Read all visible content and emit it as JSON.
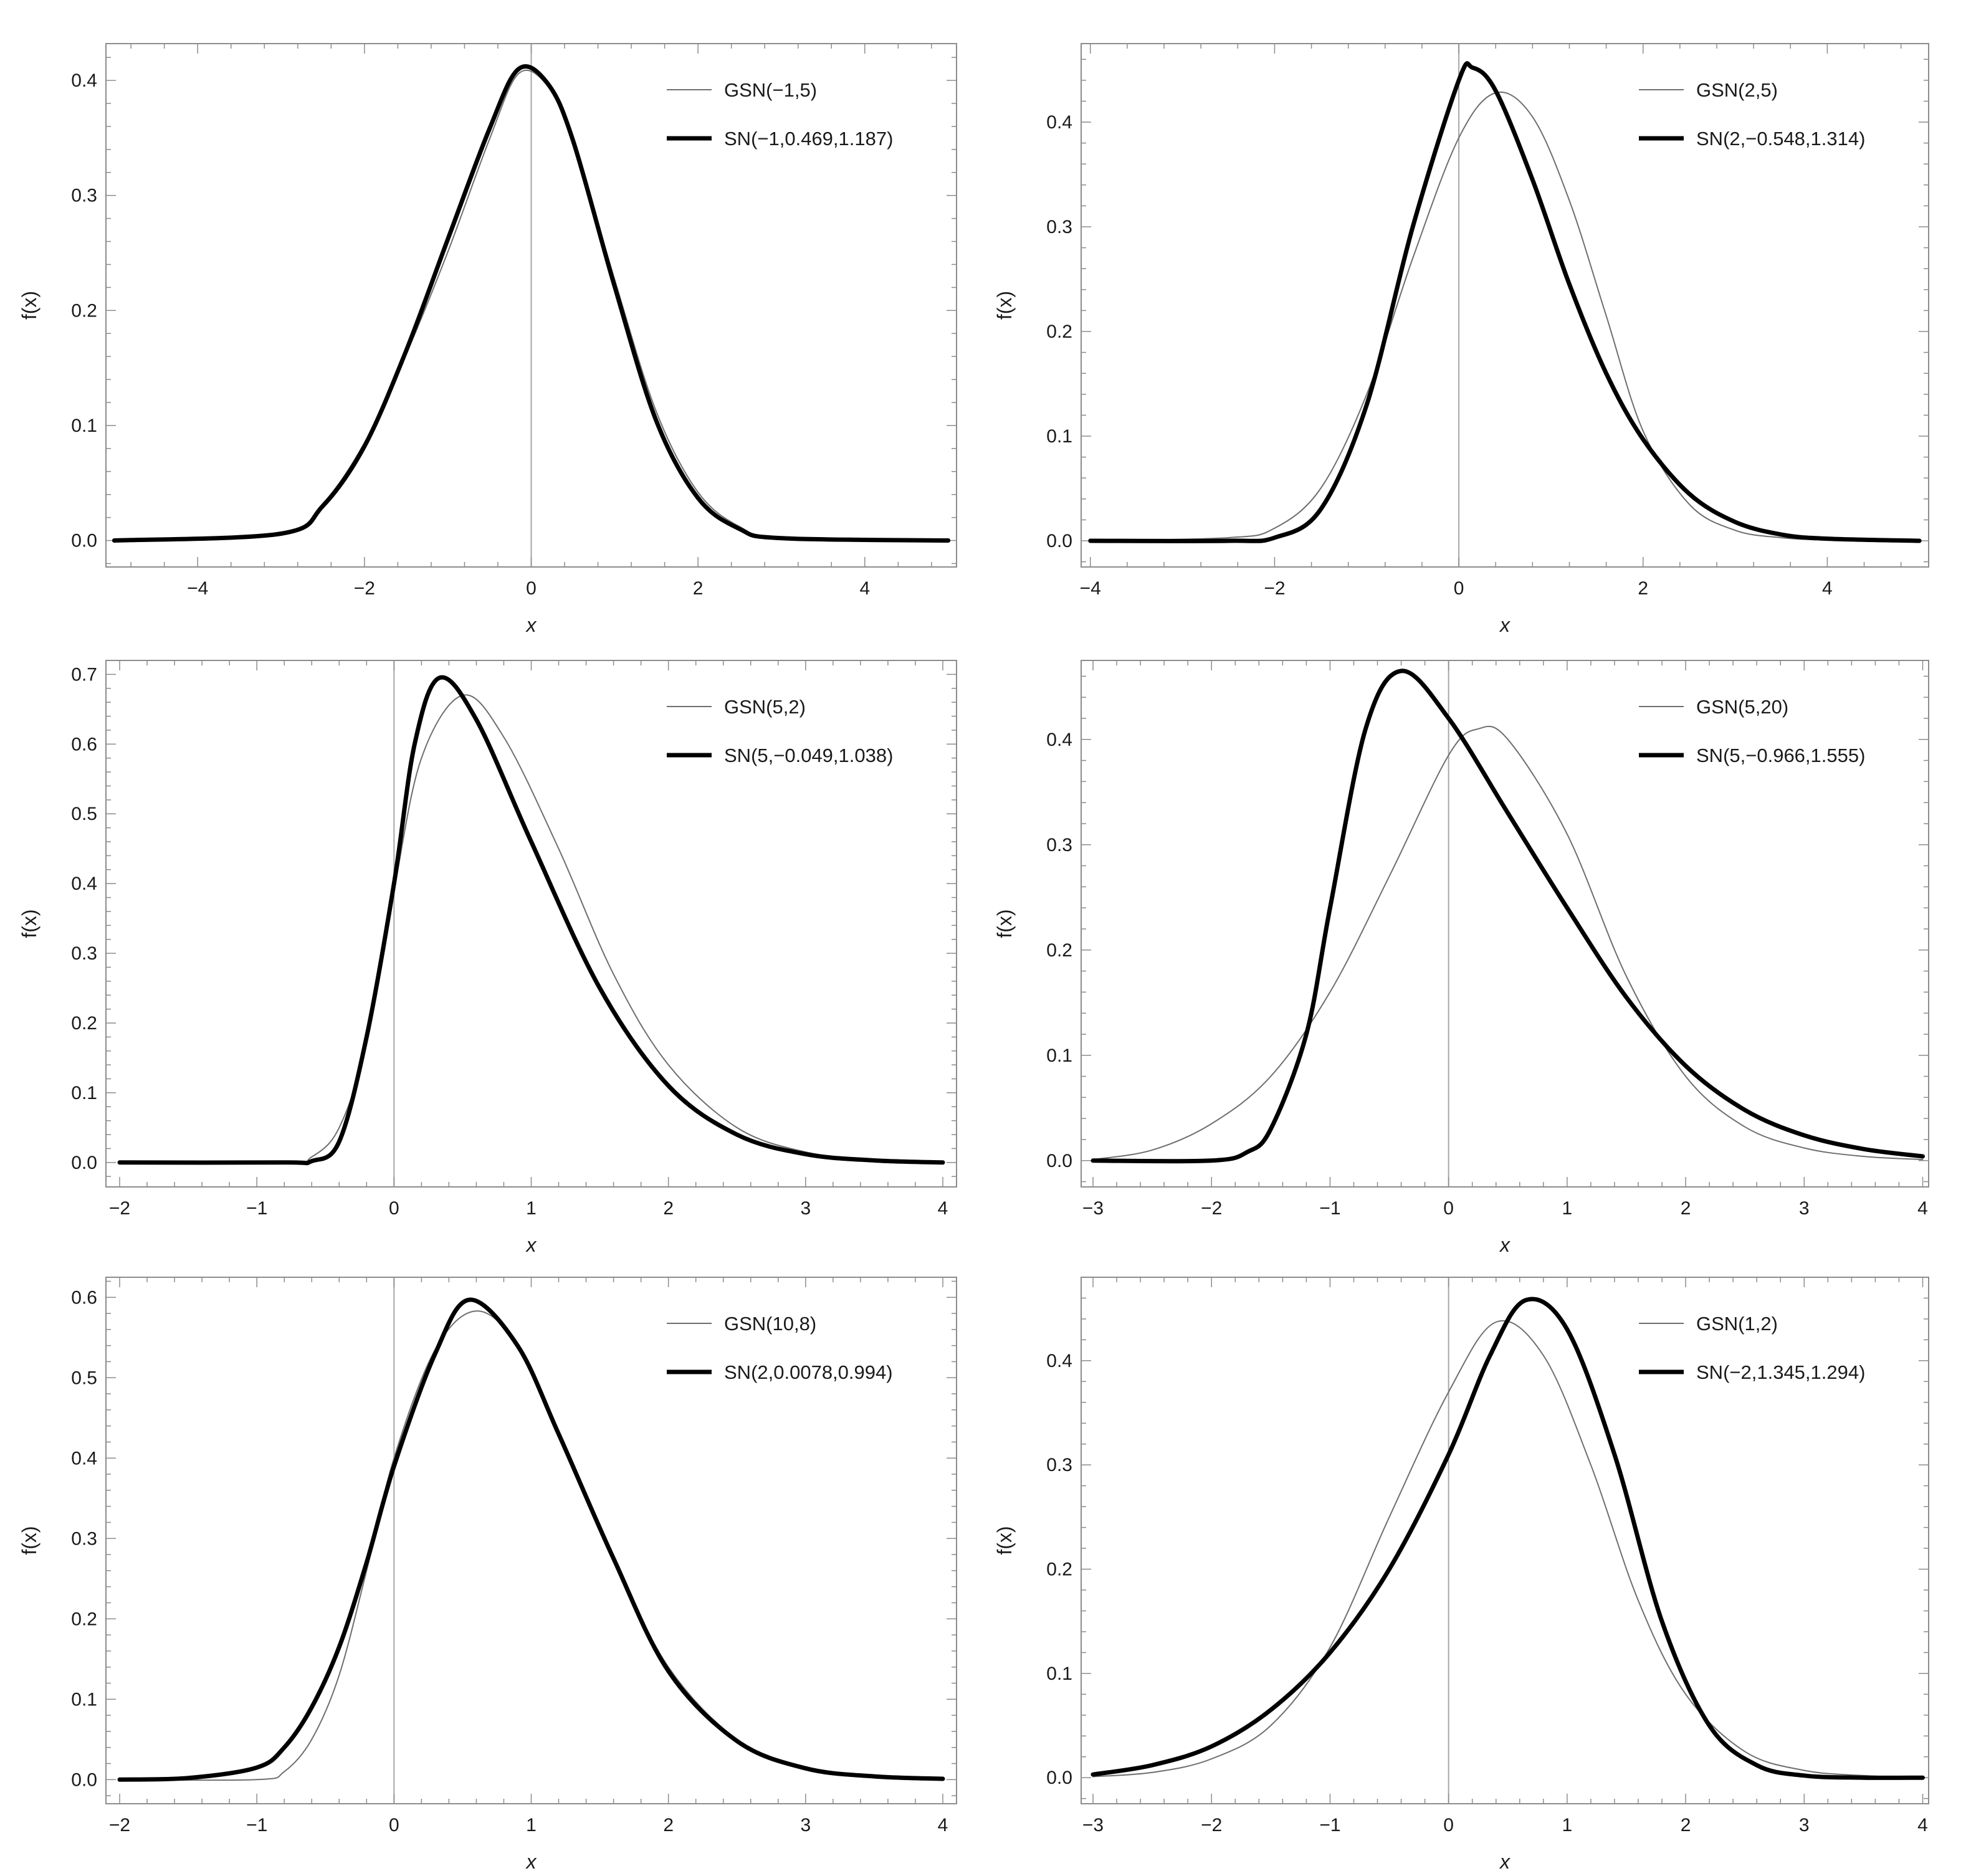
{
  "colors": {
    "frame": "#8c8c8c",
    "zero_line": "#a6a6a6",
    "thin_series": "#6e6e6e",
    "thick_series": "#000000"
  },
  "chart_data": [
    {
      "type": "line",
      "xlabel": "x",
      "ylabel": "f(x)",
      "xlim": [
        -5.1,
        5.1
      ],
      "ylim": [
        -0.023,
        0.432
      ],
      "xticks": [
        -4,
        -2,
        0,
        2,
        4
      ],
      "yticks": [
        0.0,
        0.1,
        0.2,
        0.3,
        0.4
      ],
      "xtick_labels": [
        "−4",
        "−2",
        "0",
        "2",
        "4"
      ],
      "ytick_labels": [
        "0.0",
        "0.1",
        "0.2",
        "0.3",
        "0.4"
      ],
      "legend_position": "top-right",
      "series": [
        {
          "name": "GSN(−1,5)",
          "style": "thin",
          "x": [
            -5,
            -3,
            -2.5,
            -2,
            -1.5,
            -1,
            -0.5,
            -0.15,
            0.2,
            0.5,
            1,
            1.5,
            2,
            2.5,
            3,
            5
          ],
          "y": [
            0,
            0.006,
            0.032,
            0.085,
            0.162,
            0.251,
            0.349,
            0.406,
            0.395,
            0.349,
            0.227,
            0.112,
            0.042,
            0.012,
            0.003,
            0
          ]
        },
        {
          "name": "SN(−1,0.469,1.187)",
          "style": "thick",
          "x": [
            -5,
            -3,
            -2.5,
            -2,
            -1.5,
            -1,
            -0.5,
            -0.15,
            0.2,
            0.5,
            1,
            1.5,
            2,
            2.5,
            3,
            5
          ],
          "y": [
            0,
            0.006,
            0.03,
            0.082,
            0.165,
            0.262,
            0.358,
            0.41,
            0.397,
            0.348,
            0.221,
            0.104,
            0.037,
            0.01,
            0.002,
            0
          ]
        }
      ]
    },
    {
      "type": "line",
      "xlabel": "x",
      "ylabel": "f(x)",
      "xlim": [
        -4.1,
        5.1
      ],
      "ylim": [
        -0.025,
        0.475
      ],
      "xticks": [
        -4,
        -2,
        0,
        2,
        4
      ],
      "yticks": [
        0.0,
        0.1,
        0.2,
        0.3,
        0.4
      ],
      "xtick_labels": [
        "−4",
        "−2",
        "0",
        "2",
        "4"
      ],
      "ytick_labels": [
        "0.0",
        "0.1",
        "0.2",
        "0.3",
        "0.4"
      ],
      "legend_position": "top-right",
      "series": [
        {
          "name": "GSN(2,5)",
          "style": "thin",
          "x": [
            -4,
            -2.5,
            -2,
            -1.5,
            -1,
            -0.5,
            0,
            0.4,
            0.8,
            1.2,
            1.6,
            2,
            2.5,
            3,
            3.5,
            4,
            5
          ],
          "y": [
            0,
            0.003,
            0.012,
            0.05,
            0.14,
            0.27,
            0.385,
            0.428,
            0.405,
            0.325,
            0.215,
            0.105,
            0.035,
            0.01,
            0.003,
            0.001,
            0
          ]
        },
        {
          "name": "SN(2,−0.548,1.314)",
          "style": "thick",
          "x": [
            -4,
            -2.5,
            -2,
            -1.5,
            -1,
            -0.5,
            0,
            0.15,
            0.4,
            0.8,
            1.2,
            1.6,
            2,
            2.5,
            3,
            3.5,
            4,
            5
          ],
          "y": [
            0,
            0,
            0.003,
            0.03,
            0.13,
            0.3,
            0.44,
            0.452,
            0.43,
            0.345,
            0.245,
            0.16,
            0.097,
            0.045,
            0.018,
            0.006,
            0.002,
            0
          ]
        }
      ]
    },
    {
      "type": "line",
      "xlabel": "x",
      "ylabel": "f(x)",
      "xlim": [
        -2.1,
        4.1
      ],
      "ylim": [
        -0.035,
        0.72
      ],
      "xticks": [
        -2,
        -1,
        0,
        1,
        2,
        3,
        4
      ],
      "yticks": [
        0.0,
        0.1,
        0.2,
        0.3,
        0.4,
        0.5,
        0.6,
        0.7
      ],
      "xtick_labels": [
        "−2",
        "−1",
        "0",
        "1",
        "2",
        "3",
        "4"
      ],
      "ytick_labels": [
        "0.0",
        "0.1",
        "0.2",
        "0.3",
        "0.4",
        "0.5",
        "0.6",
        "0.7"
      ],
      "legend_position": "top-right",
      "series": [
        {
          "name": "GSN(5,2)",
          "style": "thin",
          "x": [
            -2,
            -0.8,
            -0.6,
            -0.4,
            -0.2,
            0,
            0.2,
            0.5,
            0.8,
            1.2,
            1.6,
            2,
            2.5,
            3,
            3.5,
            4
          ],
          "y": [
            0,
            0,
            0.008,
            0.05,
            0.17,
            0.39,
            0.58,
            0.67,
            0.61,
            0.45,
            0.27,
            0.14,
            0.05,
            0.015,
            0.004,
            0
          ]
        },
        {
          "name": "SN(5,−0.049,1.038)",
          "style": "thick",
          "x": [
            -2,
            -0.8,
            -0.6,
            -0.4,
            -0.2,
            0,
            0.15,
            0.33,
            0.6,
            1,
            1.5,
            2,
            2.5,
            3,
            3.5,
            4
          ],
          "y": [
            0,
            0,
            0.002,
            0.03,
            0.18,
            0.4,
            0.6,
            0.695,
            0.635,
            0.46,
            0.25,
            0.11,
            0.04,
            0.012,
            0.003,
            0
          ]
        }
      ]
    },
    {
      "type": "line",
      "xlabel": "x",
      "ylabel": "f(x)",
      "xlim": [
        -3.1,
        4.05
      ],
      "ylim": [
        -0.025,
        0.475
      ],
      "xticks": [
        -3,
        -2,
        -1,
        0,
        1,
        2,
        3,
        4
      ],
      "yticks": [
        0.0,
        0.1,
        0.2,
        0.3,
        0.4
      ],
      "xtick_labels": [
        "−3",
        "−2",
        "−1",
        "0",
        "1",
        "2",
        "3",
        "4"
      ],
      "ytick_labels": [
        "0.0",
        "0.1",
        "0.2",
        "0.3",
        "0.4"
      ],
      "legend_position": "top-right",
      "series": [
        {
          "name": "GSN(5,20)",
          "style": "thin",
          "x": [
            -3,
            -2.5,
            -2,
            -1.5,
            -1,
            -0.5,
            0,
            0.25,
            0.5,
            1,
            1.5,
            2,
            2.5,
            3,
            3.5,
            4
          ],
          "y": [
            0.001,
            0.01,
            0.035,
            0.08,
            0.16,
            0.27,
            0.385,
            0.41,
            0.4,
            0.31,
            0.175,
            0.08,
            0.032,
            0.012,
            0.004,
            0.001
          ]
        },
        {
          "name": "SN(5,−0.966,1.555)",
          "style": "thick",
          "x": [
            -3,
            -2,
            -1.7,
            -1.5,
            -1.2,
            -1,
            -0.7,
            -0.4,
            0,
            0.5,
            1,
            1.5,
            2,
            2.5,
            3,
            3.5,
            4
          ],
          "y": [
            0,
            0.0,
            0.008,
            0.03,
            0.12,
            0.24,
            0.41,
            0.465,
            0.42,
            0.33,
            0.24,
            0.155,
            0.09,
            0.048,
            0.024,
            0.011,
            0.004
          ]
        }
      ]
    },
    {
      "type": "line",
      "xlabel": "x",
      "ylabel": "f(x)",
      "xlim": [
        -2.1,
        4.1
      ],
      "ylim": [
        -0.03,
        0.625
      ],
      "xticks": [
        -2,
        -1,
        0,
        1,
        2,
        3,
        4
      ],
      "yticks": [
        0.0,
        0.1,
        0.2,
        0.3,
        0.4,
        0.5,
        0.6
      ],
      "xtick_labels": [
        "−2",
        "−1",
        "0",
        "1",
        "2",
        "3",
        "4"
      ],
      "ytick_labels": [
        "0.0",
        "0.1",
        "0.2",
        "0.3",
        "0.4",
        "0.5",
        "0.6"
      ],
      "legend_position": "top-right",
      "series": [
        {
          "name": "GSN(10,8)",
          "style": "thin",
          "x": [
            -2,
            -1,
            -0.8,
            -0.6,
            -0.4,
            -0.2,
            0,
            0.3,
            0.6,
            0.9,
            1.2,
            1.6,
            2,
            2.5,
            3,
            3.5,
            4
          ],
          "y": [
            0,
            0,
            0.01,
            0.05,
            0.13,
            0.26,
            0.4,
            0.535,
            0.583,
            0.54,
            0.43,
            0.275,
            0.14,
            0.05,
            0.015,
            0.004,
            0.001
          ]
        },
        {
          "name": "SN(2,0.0078,0.994)",
          "style": "thick",
          "x": [
            -2,
            -1.5,
            -1,
            -0.8,
            -0.6,
            -0.4,
            -0.2,
            0,
            0.3,
            0.55,
            0.9,
            1.2,
            1.6,
            2,
            2.5,
            3,
            3.5,
            4
          ],
          "y": [
            0,
            0.002,
            0.015,
            0.04,
            0.09,
            0.165,
            0.27,
            0.39,
            0.53,
            0.597,
            0.54,
            0.43,
            0.275,
            0.135,
            0.048,
            0.014,
            0.004,
            0.001
          ]
        }
      ]
    },
    {
      "type": "line",
      "xlabel": "x",
      "ylabel": "f(x)",
      "xlim": [
        -3.1,
        4.05
      ],
      "ylim": [
        -0.025,
        0.48
      ],
      "xticks": [
        -3,
        -2,
        -1,
        0,
        1,
        2,
        3,
        4
      ],
      "yticks": [
        0.0,
        0.1,
        0.2,
        0.3,
        0.4
      ],
      "xtick_labels": [
        "−3",
        "−2",
        "−1",
        "0",
        "1",
        "2",
        "3",
        "4"
      ],
      "ytick_labels": [
        "0.0",
        "0.1",
        "0.2",
        "0.3",
        "0.4"
      ],
      "legend_position": "top-right",
      "series": [
        {
          "name": "GSN(1,2)",
          "style": "thin",
          "x": [
            -3,
            -2.5,
            -2,
            -1.5,
            -1,
            -0.5,
            0,
            0.4,
            0.8,
            1.2,
            1.6,
            2,
            2.5,
            3,
            3.5,
            4
          ],
          "y": [
            0.001,
            0.005,
            0.018,
            0.05,
            0.125,
            0.25,
            0.37,
            0.437,
            0.405,
            0.3,
            0.17,
            0.08,
            0.025,
            0.007,
            0.002,
            0
          ]
        },
        {
          "name": "SN(−2,1.345,1.294)",
          "style": "thick",
          "x": [
            -3,
            -2.5,
            -2,
            -1.5,
            -1,
            -0.5,
            0,
            0.35,
            0.65,
            1,
            1.4,
            1.8,
            2.2,
            2.6,
            3,
            3.5,
            4
          ],
          "y": [
            0.003,
            0.012,
            0.03,
            0.065,
            0.12,
            0.2,
            0.31,
            0.405,
            0.458,
            0.43,
            0.31,
            0.15,
            0.05,
            0.012,
            0.002,
            0,
            0
          ]
        }
      ]
    }
  ]
}
